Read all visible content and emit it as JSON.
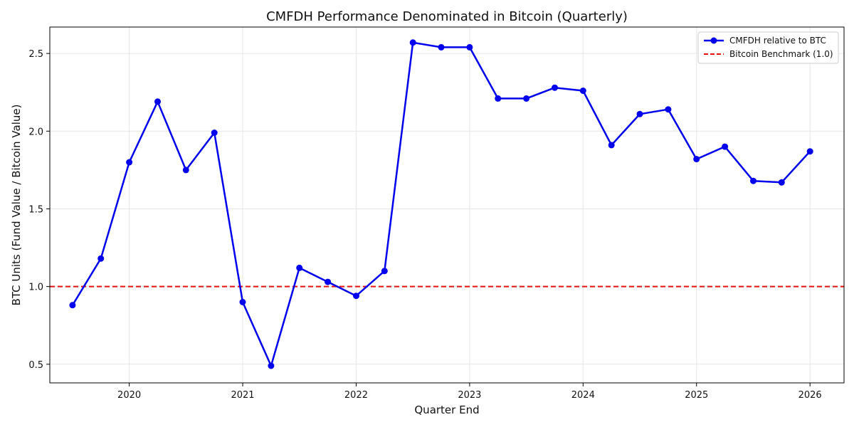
{
  "chart_data": {
    "type": "line",
    "title": "CMFDH Performance Denominated in Bitcoin (Quarterly)",
    "xlabel": "Quarter End",
    "ylabel": "BTC Units (Fund Value / Bitcoin Value)",
    "x_ticks": [
      "2020",
      "2021",
      "2022",
      "2023",
      "2024",
      "2025",
      "2026"
    ],
    "y_ticks": [
      "0.5",
      "1.0",
      "1.5",
      "2.0",
      "2.5"
    ],
    "xlim": [
      2019.3,
      2026.3
    ],
    "ylim": [
      0.38,
      2.67
    ],
    "grid": true,
    "legend_position": "top-right",
    "series": [
      {
        "name": "CMFDH relative to BTC",
        "color": "#0000ee",
        "marker": "circle",
        "x": [
          "2019-07-01",
          "2019-10-01",
          "2020-01-01",
          "2020-04-01",
          "2020-07-01",
          "2020-10-01",
          "2021-01-01",
          "2021-04-01",
          "2021-07-01",
          "2021-10-01",
          "2022-01-01",
          "2022-04-01",
          "2022-07-01",
          "2022-10-01",
          "2023-01-01",
          "2023-04-01",
          "2023-07-01",
          "2023-10-01",
          "2024-01-01",
          "2024-04-01",
          "2024-07-01",
          "2024-10-01",
          "2025-01-01",
          "2025-04-01",
          "2025-07-01",
          "2025-10-01",
          "2026-01-01"
        ],
        "values": [
          0.88,
          1.18,
          1.8,
          2.19,
          1.75,
          1.99,
          0.9,
          0.49,
          1.12,
          1.03,
          0.94,
          1.1,
          2.57,
          2.54,
          2.54,
          2.21,
          2.21,
          2.28,
          2.26,
          1.91,
          2.11,
          2.14,
          1.82,
          1.9,
          1.68,
          1.67,
          1.87
        ]
      }
    ],
    "reference_lines": [
      {
        "name": "Bitcoin Benchmark (1.0)",
        "y": 1.0,
        "color": "#e81010",
        "style": "dashed"
      }
    ]
  }
}
